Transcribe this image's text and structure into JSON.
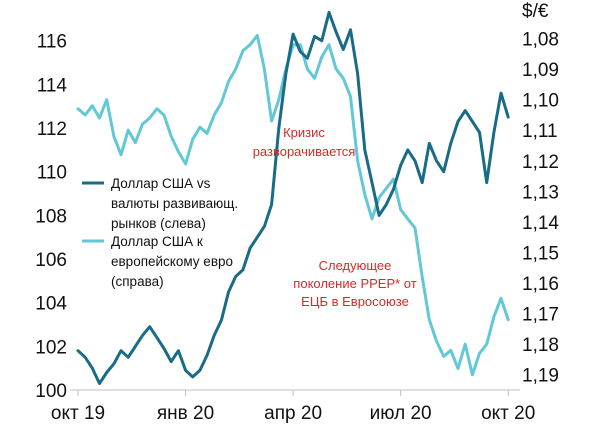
{
  "chart_data": {
    "type": "line",
    "y_left_range": [
      100,
      117.5
    ],
    "y_right_range": [
      1.195,
      1.07
    ],
    "x_range": [
      0,
      12.05
    ],
    "y_left_ticks": [
      "100",
      "102",
      "104",
      "106",
      "108",
      "110",
      "112",
      "114",
      "116"
    ],
    "y_right_ticks": [
      "1,08",
      "1,09",
      "1,10",
      "1,11",
      "1,12",
      "1,13",
      "1,14",
      "1,15",
      "1,16",
      "1,17",
      "1,18",
      "1,19"
    ],
    "y_right_tick_values": [
      1.08,
      1.09,
      1.1,
      1.11,
      1.12,
      1.13,
      1.14,
      1.15,
      1.16,
      1.17,
      1.18,
      1.19
    ],
    "y_right_unit": "$/€",
    "x_ticks": [
      {
        "label": "окт 19",
        "at": 0
      },
      {
        "label": "янв 20",
        "at": 3
      },
      {
        "label": "апр 20",
        "at": 6
      },
      {
        "label": "июл 20",
        "at": 9
      },
      {
        "label": "окт 20",
        "at": 12
      }
    ],
    "colors": {
      "em_series": "#1a6b87",
      "eur_series": "#62c8d6",
      "annotation": "#d42a2a"
    },
    "series": [
      {
        "name": "Доллар США vs валюты развивающ. рынков (слева)",
        "axis": "left",
        "x": [
          0.0,
          0.2,
          0.4,
          0.6,
          0.8,
          1.0,
          1.2,
          1.4,
          1.6,
          1.8,
          2.0,
          2.2,
          2.4,
          2.6,
          2.8,
          3.0,
          3.2,
          3.4,
          3.6,
          3.8,
          4.0,
          4.2,
          4.4,
          4.6,
          4.8,
          5.0,
          5.2,
          5.4,
          5.6,
          5.8,
          6.0,
          6.2,
          6.4,
          6.6,
          6.8,
          7.0,
          7.2,
          7.4,
          7.6,
          7.8,
          8.0,
          8.2,
          8.4,
          8.6,
          8.8,
          9.0,
          9.2,
          9.4,
          9.6,
          9.8,
          10.0,
          10.2,
          10.4,
          10.6,
          10.8,
          11.0,
          11.2,
          11.4,
          11.6,
          11.8,
          12.0
        ],
        "values": [
          101.8,
          101.5,
          101.0,
          100.3,
          100.8,
          101.2,
          101.8,
          101.5,
          102.0,
          102.5,
          102.9,
          102.4,
          101.9,
          101.3,
          101.8,
          100.9,
          100.6,
          100.9,
          101.6,
          102.5,
          103.2,
          104.5,
          105.2,
          105.5,
          106.5,
          107.0,
          107.5,
          108.5,
          112.0,
          114.5,
          116.3,
          115.5,
          115.2,
          116.2,
          116.0,
          117.3,
          116.4,
          115.6,
          116.5,
          114.5,
          111.0,
          109.5,
          108.0,
          108.5,
          109.2,
          110.3,
          111.0,
          110.5,
          109.5,
          111.3,
          110.5,
          110.0,
          111.3,
          112.3,
          112.8,
          112.3,
          111.8,
          109.5,
          111.8,
          113.6,
          112.5
        ]
      },
      {
        "name": "Доллар США к европейскому евро (справа)",
        "axis": "right",
        "x": [
          0.0,
          0.2,
          0.4,
          0.6,
          0.8,
          1.0,
          1.2,
          1.4,
          1.6,
          1.8,
          2.0,
          2.2,
          2.4,
          2.6,
          2.8,
          3.0,
          3.2,
          3.4,
          3.6,
          3.8,
          4.0,
          4.2,
          4.4,
          4.6,
          4.8,
          5.0,
          5.2,
          5.4,
          5.6,
          5.8,
          6.0,
          6.2,
          6.4,
          6.6,
          6.8,
          7.0,
          7.2,
          7.4,
          7.6,
          7.8,
          8.0,
          8.2,
          8.4,
          8.6,
          8.8,
          9.0,
          9.2,
          9.4,
          9.6,
          9.8,
          10.0,
          10.2,
          10.4,
          10.6,
          10.8,
          11.0,
          11.2,
          11.4,
          11.6,
          11.8,
          12.0
        ],
        "values": [
          1.103,
          1.105,
          1.102,
          1.106,
          1.1,
          1.112,
          1.118,
          1.11,
          1.114,
          1.108,
          1.106,
          1.103,
          1.105,
          1.112,
          1.117,
          1.121,
          1.113,
          1.109,
          1.111,
          1.105,
          1.101,
          1.094,
          1.09,
          1.084,
          1.082,
          1.079,
          1.09,
          1.107,
          1.1,
          1.09,
          1.082,
          1.082,
          1.09,
          1.093,
          1.086,
          1.082,
          1.09,
          1.093,
          1.099,
          1.12,
          1.131,
          1.139,
          1.132,
          1.129,
          1.126,
          1.136,
          1.139,
          1.142,
          1.158,
          1.172,
          1.179,
          1.184,
          1.182,
          1.188,
          1.18,
          1.19,
          1.183,
          1.18,
          1.171,
          1.165,
          1.172
        ]
      }
    ],
    "annotations": [
      {
        "lines": [
          "Кризис",
          "разворачивается"
        ]
      },
      {
        "lines": [
          "Следующее",
          "поколение PPEP* от",
          "ЕЦБ в Евросоюзе"
        ]
      }
    ]
  }
}
